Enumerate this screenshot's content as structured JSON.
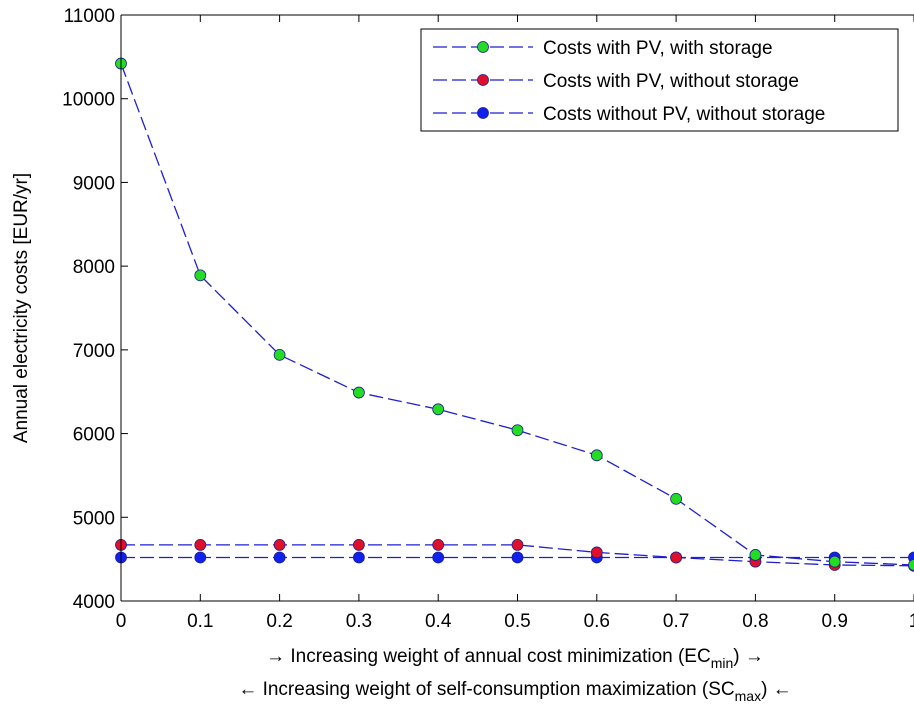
{
  "chart_data": {
    "type": "line",
    "title": "",
    "xlabel": {
      "line1": {
        "prefix": "→ Increasing weight of annual cost minimization (EC",
        "sub": "min",
        "suffix": ") →"
      },
      "line2": {
        "prefix": "← Increasing weight of self-consumption maximization (SC",
        "sub": "max",
        "suffix": ") ←"
      }
    },
    "ylabel": "Annual electricity costs [EUR/yr]",
    "xlim": [
      0,
      1
    ],
    "ylim": [
      4000,
      11000
    ],
    "x_ticks": [
      "0",
      "0.1",
      "0.2",
      "0.3",
      "0.4",
      "0.5",
      "0.6",
      "0.7",
      "0.8",
      "0.9",
      "1"
    ],
    "y_ticks": [
      "4000",
      "5000",
      "6000",
      "7000",
      "8000",
      "9000",
      "10000",
      "11000"
    ],
    "x": [
      0,
      0.1,
      0.2,
      0.3,
      0.4,
      0.5,
      0.6,
      0.7,
      0.8,
      0.9,
      1.0
    ],
    "series": [
      {
        "name": "Costs with PV, with storage",
        "marker_color": "#22dd22",
        "line_color": "#1f1fd0",
        "values": [
          10420,
          7890,
          6940,
          6490,
          6290,
          6040,
          5740,
          5220,
          4550,
          4470,
          4430
        ]
      },
      {
        "name": "Costs with PV, without storage",
        "marker_color": "#e0102a",
        "line_color": "#1f1fd0",
        "values": [
          4670,
          4670,
          4670,
          4670,
          4670,
          4670,
          4580,
          4520,
          4470,
          4430,
          4420
        ]
      },
      {
        "name": "Costs without PV, without storage",
        "marker_color": "#1020ee",
        "line_color": "#1f1fd0",
        "values": [
          4520,
          4520,
          4520,
          4520,
          4520,
          4520,
          4520,
          4520,
          4520,
          4520,
          4520
        ]
      }
    ],
    "grid": false,
    "legend_position": "top-right"
  }
}
